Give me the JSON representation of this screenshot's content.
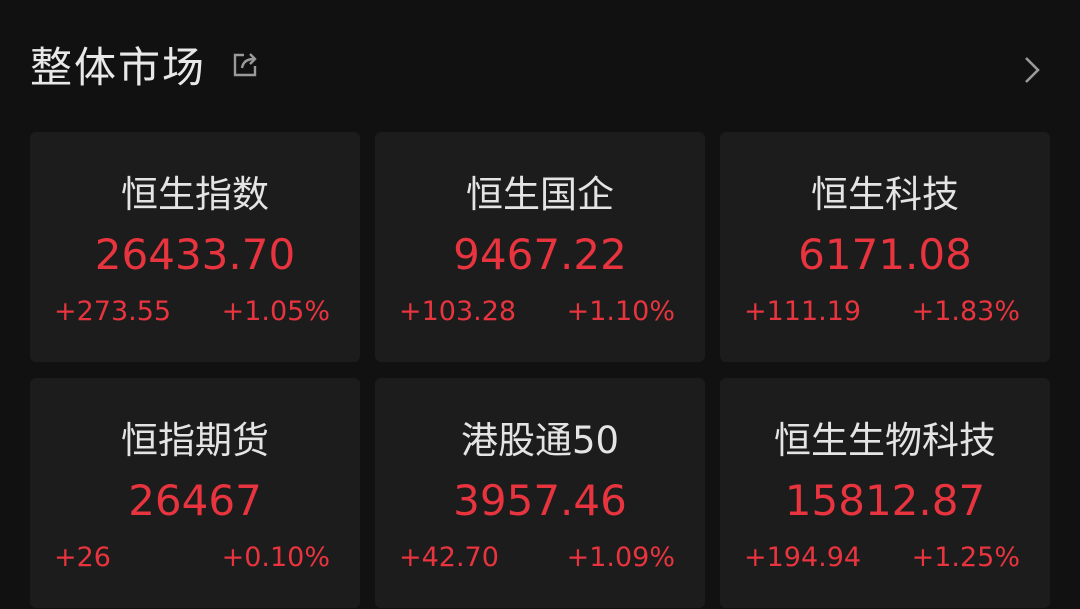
{
  "header": {
    "title": "整体市场",
    "share_icon": "share-icon",
    "more_icon": "chevron-right-icon"
  },
  "colors": {
    "up": "#e8343e",
    "background": "#111111",
    "card": "#1c1c1c"
  },
  "cards": [
    {
      "name": "恒生指数",
      "price": "26433.70",
      "change": "+273.55",
      "percent": "+1.05%"
    },
    {
      "name": "恒生国企",
      "price": "9467.22",
      "change": "+103.28",
      "percent": "+1.10%"
    },
    {
      "name": "恒生科技",
      "price": "6171.08",
      "change": "+111.19",
      "percent": "+1.83%"
    },
    {
      "name": "恒指期货",
      "price": "26467",
      "change": "+26",
      "percent": "+0.10%"
    },
    {
      "name": "港股通50",
      "price": "3957.46",
      "change": "+42.70",
      "percent": "+1.09%"
    },
    {
      "name": "恒生生物科技",
      "price": "15812.87",
      "change": "+194.94",
      "percent": "+1.25%"
    }
  ]
}
